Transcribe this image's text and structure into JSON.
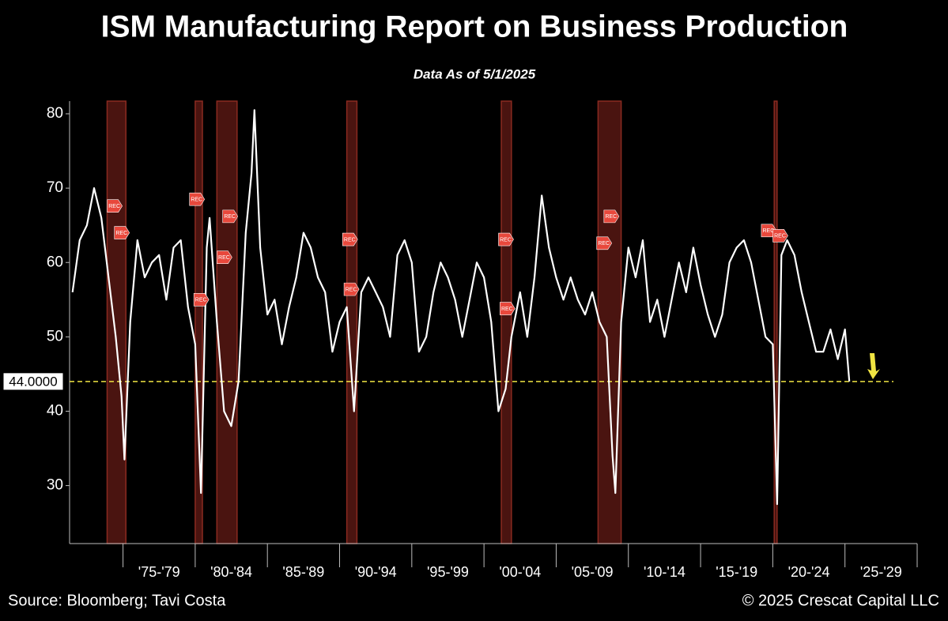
{
  "chart_data": {
    "type": "line",
    "title": "ISM Manufacturing Report on Business Production",
    "subtitle": "Data As of 5/1/2025",
    "source": "Source: Bloomberg; Tavi Costa",
    "copyright": "© 2025 Crescat Capital LLC",
    "xlim": [
      1971.3,
      2030
    ],
    "xticks": [
      1975,
      1980,
      1985,
      1990,
      1995,
      2000,
      2005,
      2010,
      2015,
      2020,
      2025,
      2030
    ],
    "period_labels": [
      "'75-'79",
      "'80-'84",
      "'85-'89",
      "'90-'94",
      "'95-'99",
      "'00-'04",
      "'05-'09",
      "'10-'14",
      "'15-'19",
      "'20-'24",
      "'25-'29"
    ],
    "ylim": [
      22.2,
      81.7
    ],
    "yticks": [
      30,
      40,
      50,
      60,
      70,
      80
    ],
    "series": [
      {
        "name": "ISM Production",
        "color": "#ffffff",
        "x": [
          1971.5,
          1972.0,
          1972.5,
          1973.0,
          1973.5,
          1974.0,
          1974.5,
          1974.9,
          1975.1,
          1975.5,
          1976.0,
          1976.5,
          1977.0,
          1977.5,
          1978.0,
          1978.5,
          1979.0,
          1979.5,
          1980.0,
          1980.4,
          1980.8,
          1981.0,
          1981.5,
          1982.0,
          1982.5,
          1983.0,
          1983.5,
          1983.9,
          1984.1,
          1984.5,
          1985.0,
          1985.5,
          1986.0,
          1986.5,
          1987.0,
          1987.5,
          1988.0,
          1988.5,
          1989.0,
          1989.5,
          1990.0,
          1990.5,
          1991.0,
          1991.5,
          1992.0,
          1992.5,
          1993.0,
          1993.5,
          1994.0,
          1994.5,
          1995.0,
          1995.5,
          1996.0,
          1996.5,
          1997.0,
          1997.5,
          1998.0,
          1998.5,
          1999.0,
          1999.5,
          2000.0,
          2000.5,
          2001.0,
          2001.5,
          2001.9,
          2002.5,
          2003.0,
          2003.5,
          2004.0,
          2004.5,
          2005.0,
          2005.5,
          2006.0,
          2006.5,
          2007.0,
          2007.5,
          2008.0,
          2008.5,
          2008.9,
          2009.1,
          2009.5,
          2010.0,
          2010.5,
          2011.0,
          2011.5,
          2012.0,
          2012.5,
          2013.0,
          2013.5,
          2014.0,
          2014.5,
          2015.0,
          2015.5,
          2016.0,
          2016.5,
          2017.0,
          2017.5,
          2018.0,
          2018.5,
          2019.0,
          2019.5,
          2020.0,
          2020.3,
          2020.6,
          2021.0,
          2021.5,
          2022.0,
          2022.5,
          2023.0,
          2023.5,
          2024.0,
          2024.5,
          2025.0,
          2025.3
        ],
        "values": [
          56,
          63,
          65,
          70,
          66,
          58,
          50,
          42,
          33.5,
          52,
          63,
          58,
          60,
          61,
          55,
          62,
          63,
          54,
          49,
          29,
          62,
          66,
          52,
          40,
          38,
          44,
          64,
          72,
          80.5,
          62,
          53,
          55,
          49,
          54,
          58,
          64,
          62,
          58,
          56,
          48,
          52,
          54,
          40,
          56,
          58,
          56,
          54,
          50,
          61,
          63,
          60,
          48,
          50,
          56,
          60,
          58,
          55,
          50,
          55,
          60,
          58,
          52,
          40,
          43,
          50,
          56,
          50,
          58,
          69,
          62,
          58,
          55,
          58,
          55,
          53,
          56,
          52,
          50,
          34,
          29,
          52,
          62,
          58,
          63,
          52,
          55,
          50,
          55,
          60,
          56,
          62,
          57,
          53,
          50,
          53,
          60,
          62,
          63,
          60,
          55,
          50,
          49,
          27.5,
          61,
          63,
          61,
          56,
          52,
          48,
          48,
          51,
          47,
          51,
          44
        ]
      }
    ],
    "recessions": [
      [
        1973.9,
        1975.2
      ],
      [
        1980.0,
        1980.5
      ],
      [
        1981.5,
        1982.9
      ],
      [
        1990.5,
        1991.2
      ],
      [
        2001.2,
        2001.9
      ],
      [
        2007.9,
        2009.5
      ],
      [
        2020.1,
        2020.3
      ]
    ],
    "reference_line": {
      "value": 44,
      "label": "44.0000",
      "color": "#f0e442"
    },
    "annotations": [
      {
        "label": "REC",
        "x": 1974.4,
        "y": 67.6
      },
      {
        "label": "REC",
        "x": 1974.9,
        "y": 64.0
      },
      {
        "label": "REC",
        "x": 1980.1,
        "y": 68.5
      },
      {
        "label": "REC",
        "x": 1980.4,
        "y": 55.0
      },
      {
        "label": "REC",
        "x": 1982.0,
        "y": 60.7
      },
      {
        "label": "REC",
        "x": 1982.4,
        "y": 66.2
      },
      {
        "label": "REC",
        "x": 1990.7,
        "y": 63.1
      },
      {
        "label": "REC",
        "x": 1990.8,
        "y": 56.4
      },
      {
        "label": "REC",
        "x": 2001.5,
        "y": 63.1
      },
      {
        "label": "REC",
        "x": 2001.6,
        "y": 53.8
      },
      {
        "label": "REC",
        "x": 2008.3,
        "y": 62.6
      },
      {
        "label": "REC",
        "x": 2008.8,
        "y": 66.2
      },
      {
        "label": "REC",
        "x": 2019.7,
        "y": 64.3
      },
      {
        "label": "REC",
        "x": 2020.5,
        "y": 63.6
      }
    ]
  }
}
